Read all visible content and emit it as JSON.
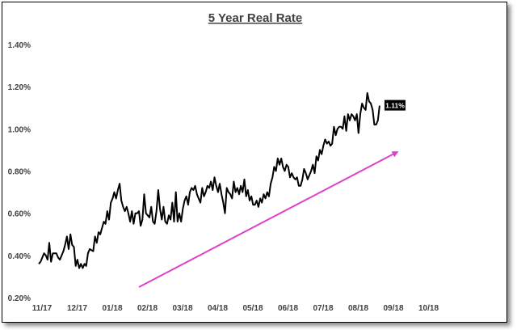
{
  "chart_data": {
    "type": "line",
    "title": "5 Year Real Rate",
    "xlabel": "",
    "ylabel": "",
    "ylim": [
      0.2,
      1.4
    ],
    "y_ticks": [
      "0.20%",
      "0.40%",
      "0.60%",
      "0.80%",
      "1.00%",
      "1.20%",
      "1.40%"
    ],
    "x_ticks": [
      "11/17",
      "12/17",
      "01/18",
      "02/18",
      "03/18",
      "04/18",
      "05/18",
      "06/18",
      "07/18",
      "08/18",
      "09/18",
      "10/18"
    ],
    "grid": false,
    "legend": "none",
    "end_label": "1.11%",
    "colors": {
      "line": "#000000",
      "trend": "#e040c8",
      "end_label_bg": "#000000"
    },
    "series": [
      {
        "values": [
          [
            0.0,
            0.36
          ],
          [
            0.05,
            0.37
          ],
          [
            0.1,
            0.39
          ],
          [
            0.15,
            0.41
          ],
          [
            0.2,
            0.4
          ],
          [
            0.25,
            0.38
          ],
          [
            0.3,
            0.46
          ],
          [
            0.35,
            0.37
          ],
          [
            0.4,
            0.41
          ],
          [
            0.5,
            0.41
          ],
          [
            0.55,
            0.39
          ],
          [
            0.6,
            0.38
          ],
          [
            0.7,
            0.42
          ],
          [
            0.75,
            0.45
          ],
          [
            0.8,
            0.49
          ],
          [
            0.85,
            0.43
          ],
          [
            0.9,
            0.5
          ],
          [
            0.95,
            0.45
          ],
          [
            1.0,
            0.44
          ],
          [
            1.05,
            0.35
          ],
          [
            1.1,
            0.38
          ],
          [
            1.15,
            0.34
          ],
          [
            1.2,
            0.36
          ],
          [
            1.25,
            0.34
          ],
          [
            1.3,
            0.36
          ],
          [
            1.35,
            0.35
          ],
          [
            1.4,
            0.41
          ],
          [
            1.45,
            0.43
          ],
          [
            1.55,
            0.42
          ],
          [
            1.6,
            0.49
          ],
          [
            1.65,
            0.46
          ],
          [
            1.7,
            0.51
          ],
          [
            1.75,
            0.5
          ],
          [
            1.8,
            0.53
          ],
          [
            1.85,
            0.56
          ],
          [
            1.9,
            0.55
          ],
          [
            1.95,
            0.61
          ],
          [
            2.0,
            0.57
          ],
          [
            2.05,
            0.65
          ],
          [
            2.1,
            0.67
          ],
          [
            2.15,
            0.7
          ],
          [
            2.2,
            0.67
          ],
          [
            2.25,
            0.71
          ],
          [
            2.3,
            0.74
          ],
          [
            2.35,
            0.66
          ],
          [
            2.4,
            0.63
          ],
          [
            2.45,
            0.61
          ],
          [
            2.5,
            0.63
          ],
          [
            2.55,
            0.6
          ],
          [
            2.6,
            0.56
          ],
          [
            2.65,
            0.61
          ],
          [
            2.7,
            0.55
          ],
          [
            2.75,
            0.6
          ],
          [
            2.8,
            0.6
          ],
          [
            2.85,
            0.61
          ],
          [
            2.9,
            0.54
          ],
          [
            2.95,
            0.57
          ],
          [
            3.0,
            0.69
          ],
          [
            3.05,
            0.6
          ],
          [
            3.1,
            0.59
          ],
          [
            3.15,
            0.58
          ],
          [
            3.2,
            0.63
          ],
          [
            3.25,
            0.56
          ],
          [
            3.3,
            0.55
          ],
          [
            3.35,
            0.61
          ],
          [
            3.4,
            0.71
          ],
          [
            3.45,
            0.62
          ],
          [
            3.5,
            0.57
          ],
          [
            3.55,
            0.63
          ],
          [
            3.6,
            0.56
          ],
          [
            3.65,
            0.55
          ],
          [
            3.7,
            0.59
          ],
          [
            3.75,
            0.57
          ],
          [
            3.8,
            0.65
          ],
          [
            3.85,
            0.56
          ],
          [
            3.9,
            0.7
          ],
          [
            3.95,
            0.56
          ],
          [
            4.0,
            0.6
          ],
          [
            4.05,
            0.56
          ],
          [
            4.1,
            0.62
          ],
          [
            4.15,
            0.66
          ],
          [
            4.2,
            0.68
          ],
          [
            4.25,
            0.64
          ],
          [
            4.3,
            0.7
          ],
          [
            4.35,
            0.72
          ],
          [
            4.4,
            0.71
          ],
          [
            4.45,
            0.73
          ],
          [
            4.5,
            0.69
          ],
          [
            4.55,
            0.67
          ],
          [
            4.6,
            0.65
          ],
          [
            4.65,
            0.72
          ],
          [
            4.7,
            0.68
          ],
          [
            4.75,
            0.7
          ],
          [
            4.8,
            0.73
          ],
          [
            4.85,
            0.72
          ],
          [
            4.9,
            0.75
          ],
          [
            4.95,
            0.71
          ],
          [
            5.0,
            0.77
          ],
          [
            5.05,
            0.73
          ],
          [
            5.1,
            0.7
          ],
          [
            5.15,
            0.74
          ],
          [
            5.2,
            0.69
          ],
          [
            5.25,
            0.65
          ],
          [
            5.3,
            0.6
          ],
          [
            5.35,
            0.72
          ],
          [
            5.4,
            0.7
          ],
          [
            5.45,
            0.69
          ],
          [
            5.5,
            0.67
          ],
          [
            5.55,
            0.75
          ],
          [
            5.6,
            0.7
          ],
          [
            5.65,
            0.72
          ],
          [
            5.7,
            0.69
          ],
          [
            5.75,
            0.73
          ],
          [
            5.8,
            0.7
          ],
          [
            5.85,
            0.76
          ],
          [
            5.9,
            0.68
          ],
          [
            5.95,
            0.71
          ],
          [
            6.0,
            0.66
          ],
          [
            6.05,
            0.68
          ],
          [
            6.1,
            0.64
          ],
          [
            6.15,
            0.64
          ],
          [
            6.2,
            0.66
          ],
          [
            6.25,
            0.63
          ],
          [
            6.3,
            0.67
          ],
          [
            6.35,
            0.65
          ],
          [
            6.4,
            0.69
          ],
          [
            6.45,
            0.67
          ],
          [
            6.5,
            0.7
          ],
          [
            6.55,
            0.68
          ],
          [
            6.6,
            0.74
          ],
          [
            6.65,
            0.77
          ],
          [
            6.7,
            0.82
          ],
          [
            6.75,
            0.8
          ],
          [
            6.8,
            0.86
          ],
          [
            6.85,
            0.83
          ],
          [
            6.9,
            0.86
          ],
          [
            6.95,
            0.82
          ],
          [
            7.0,
            0.8
          ],
          [
            7.05,
            0.83
          ],
          [
            7.1,
            0.82
          ],
          [
            7.15,
            0.77
          ],
          [
            7.2,
            0.79
          ],
          [
            7.25,
            0.77
          ],
          [
            7.3,
            0.76
          ],
          [
            7.35,
            0.77
          ],
          [
            7.4,
            0.73
          ],
          [
            7.45,
            0.73
          ],
          [
            7.5,
            0.76
          ],
          [
            7.55,
            0.81
          ],
          [
            7.6,
            0.79
          ],
          [
            7.65,
            0.76
          ],
          [
            7.7,
            0.78
          ],
          [
            7.75,
            0.8
          ],
          [
            7.8,
            0.83
          ],
          [
            7.85,
            0.79
          ],
          [
            7.9,
            0.87
          ],
          [
            7.95,
            0.85
          ],
          [
            8.0,
            0.9
          ],
          [
            8.05,
            0.88
          ],
          [
            8.1,
            0.92
          ],
          [
            8.15,
            0.95
          ],
          [
            8.2,
            0.93
          ],
          [
            8.25,
            0.94
          ],
          [
            8.3,
            0.92
          ],
          [
            8.35,
            0.93
          ],
          [
            8.4,
            1.01
          ],
          [
            8.45,
            0.97
          ],
          [
            8.5,
            1.0
          ],
          [
            8.55,
            1.01
          ],
          [
            8.6,
            1.01
          ],
          [
            8.65,
            1.0
          ],
          [
            8.7,
            1.06
          ],
          [
            8.75,
            0.99
          ],
          [
            8.8,
            1.07
          ],
          [
            8.85,
            1.04
          ],
          [
            8.9,
            1.07
          ],
          [
            8.95,
            1.06
          ],
          [
            9.0,
            1.04
          ],
          [
            9.05,
            1.07
          ],
          [
            9.1,
            0.98
          ],
          [
            9.15,
            1.07
          ],
          [
            9.2,
            1.12
          ],
          [
            9.25,
            1.1
          ],
          [
            9.3,
            1.09
          ],
          [
            9.35,
            1.17
          ],
          [
            9.4,
            1.13
          ],
          [
            9.45,
            1.12
          ],
          [
            9.5,
            1.09
          ],
          [
            9.55,
            1.02
          ],
          [
            9.6,
            1.02
          ],
          [
            9.65,
            1.04
          ],
          [
            9.7,
            1.11
          ]
        ]
      }
    ],
    "trend_line": [
      [
        2.85,
        0.25
      ],
      [
        10.2,
        0.89
      ]
    ]
  }
}
